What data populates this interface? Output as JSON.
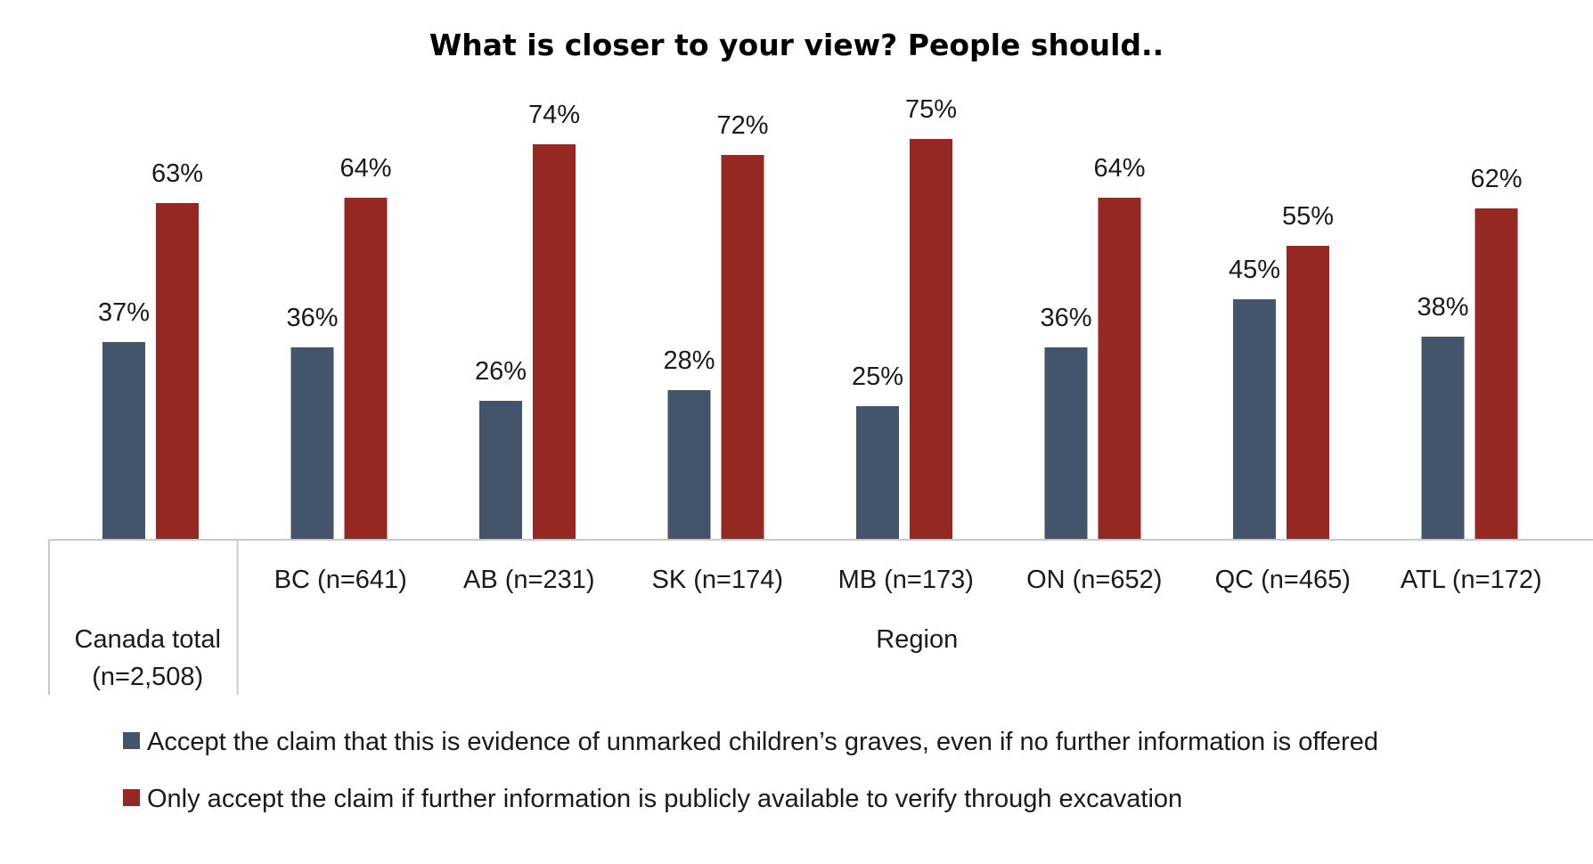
{
  "chart_data": {
    "type": "bar",
    "title": "What is closer to your view? People should..",
    "ylim": [
      0,
      100
    ],
    "unit_suffix": "%",
    "categories": [
      "Canada total (n=2,508)",
      "BC (n=641)",
      "AB (n=231)",
      "SK (n=174)",
      "MB (n=173)",
      "ON (n=652)",
      "QC (n=465)",
      "ATL (n=172)"
    ],
    "category_groups": [
      {
        "label": "Canada total",
        "label_line2": "(n=2,508)",
        "categories": [
          "Canada total (n=2,508)"
        ]
      },
      {
        "label": "Region",
        "label_line2": "",
        "categories": [
          "BC (n=641)",
          "AB (n=231)",
          "SK (n=174)",
          "MB (n=173)",
          "ON (n=652)",
          "QC (n=465)",
          "ATL (n=172)"
        ]
      }
    ],
    "series": [
      {
        "name": "Accept the claim that this is evidence of unmarked children’s graves, even if no further information is offered",
        "color": "#44546A",
        "values": [
          37,
          36,
          26,
          28,
          25,
          36,
          45,
          38
        ]
      },
      {
        "name": "Only accept the claim if further information is publicly available to verify through excavation",
        "color": "#952822",
        "values": [
          63,
          64,
          74,
          72,
          75,
          64,
          55,
          62
        ]
      }
    ],
    "legend_position": "bottom",
    "grid": false
  }
}
